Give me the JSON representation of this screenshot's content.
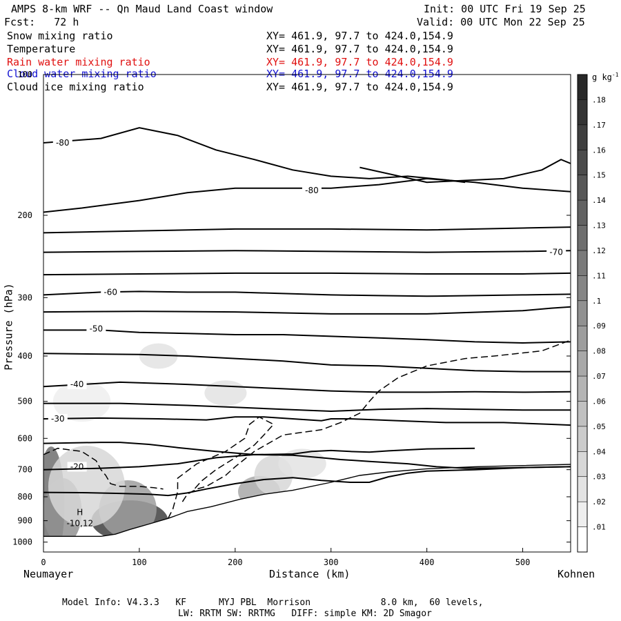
{
  "header": {
    "title": "AMPS 8-km WRF -- Qn Maud Land Coast window",
    "init": "Init: 00 UTC Fri 19 Sep 25",
    "forecast": "Fcst:   72 h",
    "valid": "Valid: 00 UTC Mon 22 Sep 25"
  },
  "variables": [
    {
      "name": "Snow mixing ratio",
      "xy": "XY= 461.9, 97.7 to 424.0,154.9",
      "color": "#000000"
    },
    {
      "name": "Temperature",
      "xy": "XY= 461.9, 97.7 to 424.0,154.9",
      "color": "#000000"
    },
    {
      "name": "Rain water mixing ratio",
      "xy": "XY= 461.9, 97.7 to 424.0,154.9",
      "color": "#e01010"
    },
    {
      "name": "Cloud water mixing ratio",
      "xy": "XY= 461.9, 97.7 to 424.0,154.9",
      "color": "#1010d0"
    },
    {
      "name": "Cloud ice mixing ratio",
      "xy": "XY= 461.9, 97.7 to 424.0,154.9",
      "color": "#000000"
    }
  ],
  "axes": {
    "xlabel": "Distance (km)",
    "ylabel": "Pressure (hPa)",
    "left_location": "Neumayer",
    "right_location": "Kohnen"
  },
  "colorbar": {
    "unit": "g kg-1",
    "levels": [
      0.01,
      0.02,
      0.03,
      0.04,
      0.05,
      0.06,
      0.07,
      0.08,
      0.09,
      0.1,
      0.11,
      0.12,
      0.13,
      0.14,
      0.15,
      0.16,
      0.17,
      0.18
    ],
    "tick_labels": [
      ".01",
      ".02",
      ".03",
      ".04",
      ".05",
      ".06",
      ".07",
      ".08",
      ".09",
      ".1",
      ".11",
      ".12",
      ".13",
      ".14",
      ".15",
      ".16",
      ".17",
      ".18"
    ]
  },
  "extremum": {
    "label": "H",
    "value": "-10,12",
    "x_km": 38,
    "p_hpa": 905
  },
  "footer": {
    "line1": "Model Info: V4.3.3   KF      MYJ PBL  Morrison             8.0 km,  60 levels,",
    "line2": "LW: RRTM SW: RRTMG   DIFF: simple KM: 2D Smagor"
  },
  "chart_data": {
    "type": "cross-section",
    "xlim": [
      0,
      550
    ],
    "ylim": [
      1050,
      100
    ],
    "yscale": "log-pressure",
    "x_ticks": [
      0,
      100,
      200,
      300,
      400,
      500
    ],
    "x_tick_labels": [
      "0",
      "100",
      "200",
      "300",
      "400",
      "500"
    ],
    "y_ticks": [
      100,
      200,
      300,
      400,
      500,
      600,
      700,
      800,
      900,
      1000
    ],
    "y_tick_labels": [
      "100",
      "200",
      "300",
      "400",
      "500",
      "600",
      "700",
      "800",
      "900",
      "1000"
    ],
    "terrain": [
      [
        0,
        972
      ],
      [
        60,
        972
      ],
      [
        75,
        962
      ],
      [
        90,
        940
      ],
      [
        110,
        915
      ],
      [
        130,
        890
      ],
      [
        150,
        860
      ],
      [
        175,
        840
      ],
      [
        205,
        810
      ],
      [
        230,
        790
      ],
      [
        260,
        775
      ],
      [
        300,
        745
      ],
      [
        330,
        720
      ],
      [
        360,
        708
      ],
      [
        400,
        697
      ],
      [
        450,
        690
      ],
      [
        500,
        686
      ],
      [
        550,
        682
      ]
    ],
    "snow_shading": [
      {
        "x": 8,
        "p": 830,
        "rx": 14,
        "rp": 230,
        "q": 0.12
      },
      {
        "x": 20,
        "p": 860,
        "rx": 20,
        "rp": 140,
        "q": 0.09
      },
      {
        "x": 90,
        "p": 900,
        "rx": 40,
        "rp": 90,
        "q": 0.16
      },
      {
        "x": 88,
        "p": 850,
        "rx": 30,
        "rp": 120,
        "q": 0.08
      },
      {
        "x": 45,
        "p": 760,
        "rx": 40,
        "rp": 150,
        "q": 0.03
      },
      {
        "x": 225,
        "p": 780,
        "rx": 22,
        "rp": 60,
        "q": 0.07
      },
      {
        "x": 240,
        "p": 720,
        "rx": 20,
        "rp": 70,
        "q": 0.03
      },
      {
        "x": 270,
        "p": 680,
        "rx": 25,
        "rp": 50,
        "q": 0.02
      },
      {
        "x": 120,
        "p": 400,
        "rx": 20,
        "rp": 25,
        "q": 0.02
      },
      {
        "x": 190,
        "p": 480,
        "rx": 22,
        "rp": 30,
        "q": 0.02
      },
      {
        "x": 40,
        "p": 500,
        "rx": 30,
        "rp": 50,
        "q": 0.01
      }
    ],
    "isotherms": [
      {
        "t": -80,
        "label": "-80",
        "label_pos": [
          20,
          140
        ],
        "points": [
          [
            0,
            140
          ],
          [
            60,
            137
          ],
          [
            100,
            130
          ],
          [
            140,
            135
          ],
          [
            180,
            145
          ],
          [
            220,
            152
          ],
          [
            260,
            160
          ],
          [
            300,
            165
          ],
          [
            340,
            167
          ],
          [
            380,
            165
          ],
          [
            420,
            168
          ],
          [
            440,
            170
          ]
        ]
      },
      {
        "t": -80,
        "label": "-80",
        "label_pos": [
          280,
          177
        ],
        "points": [
          [
            0,
            197
          ],
          [
            40,
            193
          ],
          [
            100,
            186
          ],
          [
            150,
            179
          ],
          [
            200,
            175
          ],
          [
            250,
            175
          ],
          [
            300,
            175
          ],
          [
            350,
            172
          ],
          [
            400,
            167
          ],
          [
            450,
            170
          ],
          [
            500,
            175
          ],
          [
            550,
            178
          ]
        ]
      },
      {
        "t": -80,
        "label": "",
        "label_pos": null,
        "points": [
          [
            330,
            158
          ],
          [
            400,
            170
          ],
          [
            480,
            167
          ],
          [
            520,
            160
          ],
          [
            540,
            152
          ],
          [
            550,
            155
          ]
        ]
      },
      {
        "t": -75,
        "label": "",
        "label_pos": null,
        "points": [
          [
            0,
            218
          ],
          [
            100,
            216
          ],
          [
            200,
            214
          ],
          [
            300,
            214
          ],
          [
            400,
            215
          ],
          [
            500,
            213
          ],
          [
            550,
            212
          ]
        ]
      },
      {
        "t": -70,
        "label": "-70",
        "label_pos": [
          535,
          240
        ],
        "points": [
          [
            0,
            240
          ],
          [
            100,
            239
          ],
          [
            200,
            238
          ],
          [
            300,
            239
          ],
          [
            400,
            240
          ],
          [
            500,
            239
          ],
          [
            550,
            238
          ]
        ]
      },
      {
        "t": -65,
        "label": "",
        "label_pos": null,
        "points": [
          [
            0,
            268
          ],
          [
            100,
            267
          ],
          [
            200,
            266
          ],
          [
            300,
            266
          ],
          [
            400,
            267
          ],
          [
            500,
            267
          ],
          [
            550,
            266
          ]
        ]
      },
      {
        "t": -60,
        "label": "-60",
        "label_pos": [
          70,
          292
        ],
        "points": [
          [
            0,
            296
          ],
          [
            60,
            292
          ],
          [
            100,
            291
          ],
          [
            150,
            292
          ],
          [
            200,
            292
          ],
          [
            250,
            294
          ],
          [
            300,
            296
          ],
          [
            350,
            297
          ],
          [
            400,
            298
          ],
          [
            450,
            297
          ],
          [
            500,
            296
          ],
          [
            550,
            295
          ]
        ]
      },
      {
        "t": -60,
        "label": "",
        "label_pos": null,
        "points": [
          [
            0,
            322
          ],
          [
            100,
            321
          ],
          [
            200,
            322
          ],
          [
            300,
            325
          ],
          [
            400,
            325
          ],
          [
            500,
            320
          ],
          [
            530,
            316
          ],
          [
            550,
            314
          ]
        ]
      },
      {
        "t": -50,
        "label": "-50",
        "label_pos": [
          55,
          350
        ],
        "points": [
          [
            0,
            352
          ],
          [
            60,
            352
          ],
          [
            100,
            356
          ],
          [
            150,
            358
          ],
          [
            200,
            360
          ],
          [
            250,
            360
          ],
          [
            300,
            363
          ],
          [
            350,
            366
          ],
          [
            400,
            369
          ],
          [
            450,
            373
          ],
          [
            500,
            375
          ],
          [
            550,
            373
          ]
        ]
      },
      {
        "t": -50,
        "label": "",
        "label_pos": null,
        "points": [
          [
            0,
            395
          ],
          [
            100,
            397
          ],
          [
            150,
            400
          ],
          [
            200,
            405
          ],
          [
            250,
            410
          ],
          [
            300,
            418
          ],
          [
            350,
            420
          ],
          [
            400,
            425
          ],
          [
            450,
            430
          ],
          [
            500,
            432
          ],
          [
            550,
            432
          ]
        ]
      },
      {
        "t": -40,
        "label": "-40",
        "label_pos": [
          35,
          460
        ],
        "points": [
          [
            0,
            465
          ],
          [
            40,
            460
          ],
          [
            80,
            455
          ],
          [
            150,
            460
          ],
          [
            200,
            465
          ],
          [
            250,
            470
          ],
          [
            300,
            475
          ],
          [
            350,
            478
          ],
          [
            400,
            478
          ],
          [
            450,
            477
          ],
          [
            500,
            478
          ],
          [
            550,
            477
          ]
        ]
      },
      {
        "t": -40,
        "label": "",
        "label_pos": null,
        "points": [
          [
            0,
            505
          ],
          [
            80,
            505
          ],
          [
            150,
            510
          ],
          [
            200,
            515
          ],
          [
            250,
            520
          ],
          [
            300,
            525
          ],
          [
            350,
            520
          ],
          [
            400,
            518
          ],
          [
            450,
            520
          ],
          [
            500,
            522
          ],
          [
            550,
            522
          ]
        ]
      },
      {
        "t": -30,
        "label": "-30",
        "label_pos": [
          15,
          545
        ],
        "points": [
          [
            0,
            545
          ],
          [
            60,
            543
          ],
          [
            120,
            545
          ],
          [
            170,
            548
          ],
          [
            200,
            540
          ],
          [
            230,
            540
          ],
          [
            260,
            545
          ],
          [
            290,
            550
          ],
          [
            300,
            545
          ],
          [
            320,
            545
          ],
          [
            370,
            550
          ],
          [
            420,
            555
          ],
          [
            480,
            555
          ],
          [
            530,
            560
          ],
          [
            550,
            562
          ]
        ]
      },
      {
        "t": -20,
        "label": "-20",
        "label_pos": [
          35,
          690
        ],
        "points": [
          [
            0,
            615
          ],
          [
            60,
            612
          ],
          [
            80,
            612
          ],
          [
            110,
            618
          ],
          [
            140,
            628
          ],
          [
            180,
            640
          ],
          [
            220,
            650
          ],
          [
            260,
            648
          ],
          [
            280,
            640
          ],
          [
            300,
            637
          ],
          [
            320,
            640
          ],
          [
            340,
            642
          ],
          [
            360,
            638
          ],
          [
            400,
            632
          ],
          [
            450,
            630
          ]
        ]
      },
      {
        "t": -20,
        "label": "",
        "label_pos": null,
        "points": [
          [
            0,
            700
          ],
          [
            60,
            695
          ],
          [
            100,
            690
          ],
          [
            140,
            680
          ],
          [
            180,
            660
          ],
          [
            220,
            650
          ],
          [
            260,
            652
          ],
          [
            290,
            660
          ],
          [
            310,
            666
          ],
          [
            340,
            672
          ],
          [
            380,
            680
          ],
          [
            410,
            690
          ],
          [
            440,
            695
          ],
          [
            480,
            694
          ],
          [
            550,
            690
          ]
        ]
      },
      {
        "t": -10,
        "label": "",
        "label_pos": null,
        "points": [
          [
            0,
            783
          ],
          [
            40,
            784
          ],
          [
            80,
            787
          ],
          [
            110,
            790
          ],
          [
            130,
            795
          ],
          [
            150,
            785
          ],
          [
            170,
            770
          ],
          [
            200,
            750
          ],
          [
            230,
            735
          ],
          [
            260,
            728
          ],
          [
            290,
            738
          ],
          [
            320,
            745
          ],
          [
            340,
            745
          ],
          [
            360,
            725
          ],
          [
            380,
            712
          ],
          [
            400,
            705
          ],
          [
            450,
            700
          ],
          [
            500,
            693
          ],
          [
            550,
            690
          ]
        ]
      }
    ],
    "freezing_dashed": [
      {
        "points": [
          [
            0,
            650
          ],
          [
            15,
            630
          ],
          [
            40,
            640
          ],
          [
            55,
            670
          ],
          [
            60,
            700
          ],
          [
            65,
            720
          ],
          [
            70,
            750
          ],
          [
            80,
            760
          ],
          [
            100,
            760
          ],
          [
            115,
            765
          ],
          [
            125,
            770
          ]
        ]
      },
      {
        "points": [
          [
            145,
            820
          ],
          [
            150,
            790
          ],
          [
            160,
            770
          ],
          [
            170,
            760
          ],
          [
            190,
            720
          ],
          [
            200,
            690
          ],
          [
            220,
            640
          ],
          [
            250,
            590
          ],
          [
            290,
            575
          ],
          [
            310,
            555
          ],
          [
            330,
            530
          ],
          [
            340,
            500
          ],
          [
            350,
            475
          ],
          [
            370,
            445
          ],
          [
            400,
            420
          ],
          [
            440,
            405
          ],
          [
            470,
            400
          ],
          [
            520,
            390
          ],
          [
            550,
            370
          ]
        ]
      },
      {
        "points": [
          [
            130,
            890
          ],
          [
            135,
            850
          ],
          [
            140,
            780
          ],
          [
            140,
            730
          ],
          [
            160,
            680
          ],
          [
            190,
            640
          ],
          [
            210,
            600
          ],
          [
            215,
            560
          ],
          [
            225,
            540
          ],
          [
            240,
            560
          ],
          [
            230,
            590
          ],
          [
            220,
            620
          ],
          [
            200,
            660
          ],
          [
            180,
            700
          ],
          [
            165,
            740
          ],
          [
            155,
            780
          ]
        ]
      }
    ]
  }
}
